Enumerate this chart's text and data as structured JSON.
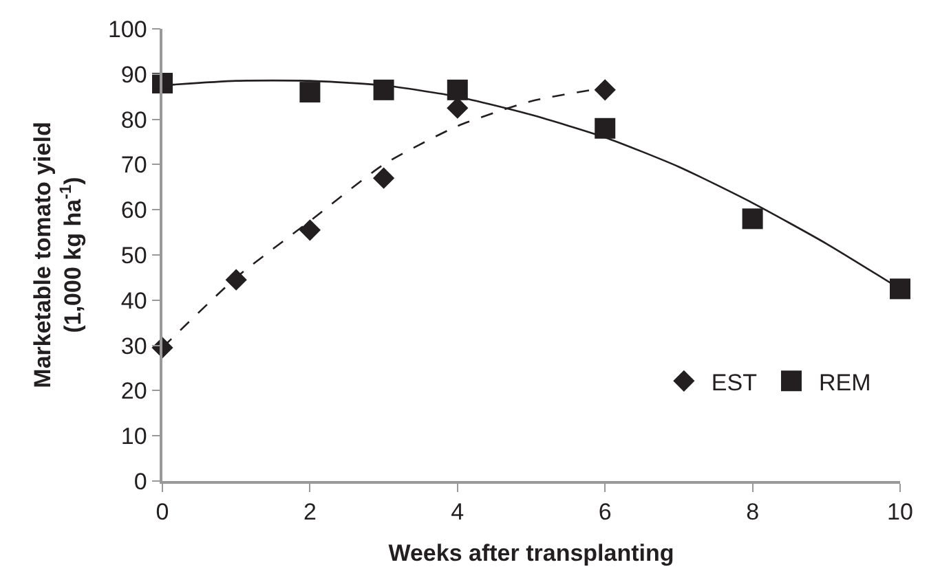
{
  "chart_data": {
    "type": "scatter",
    "xlabel": "Weeks after transplanting",
    "ylabel": "Marketable tomato yield\n(1,000 kg ha$^{-1}$)",
    "xlim": [
      0,
      10
    ],
    "xticks": [
      0,
      2,
      4,
      6,
      8,
      10
    ],
    "ylim": [
      0,
      100
    ],
    "yticks": [
      0,
      10,
      20,
      30,
      40,
      50,
      60,
      70,
      80,
      90,
      100
    ],
    "legend": "right",
    "series": [
      {
        "name": "EST",
        "color": "#231f20",
        "marker": "diamond",
        "x": [
          0,
          1,
          2,
          3,
          4,
          6
        ],
        "values": [
          29.5,
          44.5,
          55.5,
          67,
          82.5,
          86.5
        ]
      },
      {
        "name": "REM",
        "color": "#231f20",
        "marker": "square",
        "x": [
          0,
          2,
          3,
          4,
          6,
          8,
          10
        ],
        "values": [
          88,
          86,
          86.5,
          86.5,
          78,
          58,
          42.5
        ]
      },
      {
        "type": "line",
        "color": "#231f20",
        "line_style": "dashed",
        "marker": "none",
        "x": [
          0,
          1,
          2,
          3,
          4,
          5,
          6
        ],
        "values": [
          29.5,
          45,
          57.5,
          70,
          78.5,
          84,
          87
        ]
      },
      {
        "type": "line",
        "color": "#231f20",
        "line_style": "solid",
        "marker": "none",
        "x": [
          0,
          1,
          2,
          3,
          4,
          5,
          6,
          7,
          8,
          9,
          10
        ],
        "values": [
          87.5,
          88.5,
          88.5,
          87.5,
          85,
          81,
          76,
          69.5,
          61.5,
          52.5,
          42.5
        ]
      }
    ]
  }
}
